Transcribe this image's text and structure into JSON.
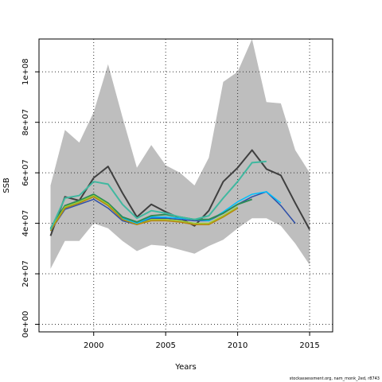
{
  "chart_data": {
    "type": "line",
    "title": "",
    "xlabel": "Years",
    "ylabel": "SSB",
    "xlim": [
      1996.2,
      2016.6
    ],
    "ylim": [
      -3000000,
      113000000
    ],
    "x_ticks": [
      {
        "value": 2000,
        "label": "2000"
      },
      {
        "value": 2005,
        "label": "2005"
      },
      {
        "value": 2010,
        "label": "2010"
      },
      {
        "value": 2015,
        "label": "2015"
      }
    ],
    "y_ticks": [
      {
        "value": 0,
        "label": "0e+00"
      },
      {
        "value": 20000000,
        "label": "2e+07"
      },
      {
        "value": 40000000,
        "label": "4e+07"
      },
      {
        "value": 60000000,
        "label": "6e+07"
      },
      {
        "value": 80000000,
        "label": "8e+07"
      },
      {
        "value": 100000000,
        "label": "1e+08"
      }
    ],
    "grid": true,
    "band": {
      "color": "#bebebe",
      "x": [
        1997,
        1998,
        1999,
        2000,
        2001,
        2002,
        2003,
        2004,
        2005,
        2006,
        2007,
        2008,
        2009,
        2010,
        2011,
        2012,
        2013,
        2014,
        2015
      ],
      "upper": [
        55000000,
        77000000,
        72000000,
        84000000,
        103000000,
        82000000,
        62000000,
        71000000,
        63000000,
        60000000,
        55000000,
        66000000,
        96000000,
        100000000,
        113000000,
        88000000,
        87500000,
        69000000,
        60000000
      ],
      "lower": [
        22000000,
        33000000,
        33000000,
        40000000,
        38000000,
        33000000,
        29000000,
        31500000,
        31000000,
        29500000,
        28000000,
        31000000,
        33500000,
        38000000,
        42000000,
        42000000,
        39000000,
        32000000,
        23500000
      ]
    },
    "series": [
      {
        "color": "#3f3f3f",
        "width": 2,
        "x": [
          1997,
          1998,
          1999,
          2000,
          2001,
          2002,
          2003,
          2004,
          2005,
          2006,
          2007,
          2008,
          2009,
          2010,
          2011,
          2012,
          2013,
          2014,
          2015
        ],
        "values": [
          35000000,
          50500000,
          49000000,
          58000000,
          62500000,
          52000000,
          42500000,
          47500000,
          44500000,
          42000000,
          39000000,
          45000000,
          56500000,
          62000000,
          69000000,
          61500000,
          59000000,
          48000000,
          37500000
        ]
      },
      {
        "color": "#2f4fa8",
        "width": 1.5,
        "x": [
          1997,
          1998,
          1999,
          2000,
          2001,
          2002,
          2003,
          2004,
          2005,
          2006,
          2007,
          2008,
          2009,
          2010,
          2011,
          2012,
          2013,
          2014
        ],
        "values": [
          37000000,
          45500000,
          47500000,
          49500000,
          46000000,
          41000000,
          39500000,
          42000000,
          42000000,
          41500000,
          41000000,
          41000000,
          44000000,
          47500000,
          50500000,
          52500000,
          47000000,
          40000000
        ]
      },
      {
        "color": "#00c0ff",
        "width": 1.5,
        "x": [
          1997,
          1998,
          1999,
          2000,
          2001,
          2002,
          2003,
          2004,
          2005,
          2006,
          2007,
          2008,
          2009,
          2010,
          2011,
          2012,
          2013
        ],
        "values": [
          37000000,
          46000000,
          48500000,
          50500000,
          47000000,
          42000000,
          40000000,
          42500000,
          42500000,
          42000000,
          41500000,
          41000000,
          44500000,
          48500000,
          51500000,
          52500000,
          48000000
        ]
      },
      {
        "color": "#2e8b57",
        "width": 2,
        "x": [
          1997,
          1998,
          1999,
          2000,
          2001,
          2002,
          2003,
          2004,
          2005,
          2006,
          2007,
          2008,
          2009,
          2010,
          2011
        ],
        "values": [
          38000000,
          47000000,
          49000000,
          51500000,
          48000000,
          42500000,
          40500000,
          43000000,
          43500000,
          42500000,
          41500000,
          41500000,
          44000000,
          47500000,
          49500000
        ]
      },
      {
        "color": "#9acd32",
        "width": 1.5,
        "x": [
          1997,
          1998,
          1999,
          2000,
          2001,
          2002,
          2003,
          2004,
          2005,
          2006,
          2007,
          2008,
          2009,
          2010
        ],
        "values": [
          37500000,
          46500000,
          48500000,
          51000000,
          47500000,
          41500000,
          39500000,
          41500000,
          41500000,
          41000000,
          40000000,
          40000000,
          43000000,
          46500000
        ]
      },
      {
        "color": "#b8860b",
        "width": 1.5,
        "x": [
          1997,
          1998,
          1999,
          2000,
          2001,
          2002,
          2003,
          2004,
          2005,
          2006,
          2007,
          2008,
          2009,
          2010
        ],
        "values": [
          37000000,
          46000000,
          48000000,
          50500000,
          47000000,
          41500000,
          39500000,
          41000000,
          41000000,
          40500000,
          39500000,
          39500000,
          42500000,
          46000000
        ]
      },
      {
        "color": "#40b8a0",
        "width": 2,
        "x": [
          1997,
          1998,
          1999,
          2000,
          2001,
          2002,
          2003,
          2004,
          2005,
          2006,
          2007,
          2008,
          2009,
          2010,
          2011,
          2012
        ],
        "values": [
          37500000,
          50000000,
          51000000,
          56500000,
          55500000,
          47500000,
          42000000,
          45000000,
          44000000,
          42500000,
          41500000,
          43000000,
          50000000,
          56500000,
          64000000,
          64500000
        ]
      }
    ]
  },
  "credit": "stockassessment.org, nam_monk_2ed, r8743"
}
